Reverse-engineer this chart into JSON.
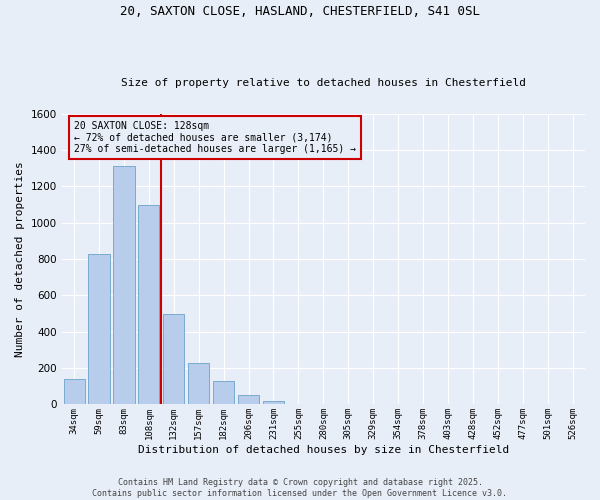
{
  "title_line1": "20, SAXTON CLOSE, HASLAND, CHESTERFIELD, S41 0SL",
  "title_line2": "Size of property relative to detached houses in Chesterfield",
  "xlabel": "Distribution of detached houses by size in Chesterfield",
  "ylabel": "Number of detached properties",
  "categories": [
    "34sqm",
    "59sqm",
    "83sqm",
    "108sqm",
    "132sqm",
    "157sqm",
    "182sqm",
    "206sqm",
    "231sqm",
    "255sqm",
    "280sqm",
    "305sqm",
    "329sqm",
    "354sqm",
    "378sqm",
    "403sqm",
    "428sqm",
    "452sqm",
    "477sqm",
    "501sqm",
    "526sqm"
  ],
  "values": [
    140,
    830,
    1310,
    1100,
    500,
    230,
    130,
    50,
    20,
    0,
    0,
    0,
    0,
    0,
    0,
    0,
    0,
    0,
    0,
    0,
    0
  ],
  "bar_color": "#b8ccec",
  "bar_edge_color": "#7aaad0",
  "background_color": "#e8eef8",
  "grid_color": "#ffffff",
  "vline_color": "#cc0000",
  "vline_x_index": 3.5,
  "annotation_text": "20 SAXTON CLOSE: 128sqm\n← 72% of detached houses are smaller (3,174)\n27% of semi-detached houses are larger (1,165) →",
  "annotation_box_color": "#cc0000",
  "ylim": [
    0,
    1600
  ],
  "yticks": [
    0,
    200,
    400,
    600,
    800,
    1000,
    1200,
    1400,
    1600
  ],
  "footer_line1": "Contains HM Land Registry data © Crown copyright and database right 2025.",
  "footer_line2": "Contains public sector information licensed under the Open Government Licence v3.0."
}
